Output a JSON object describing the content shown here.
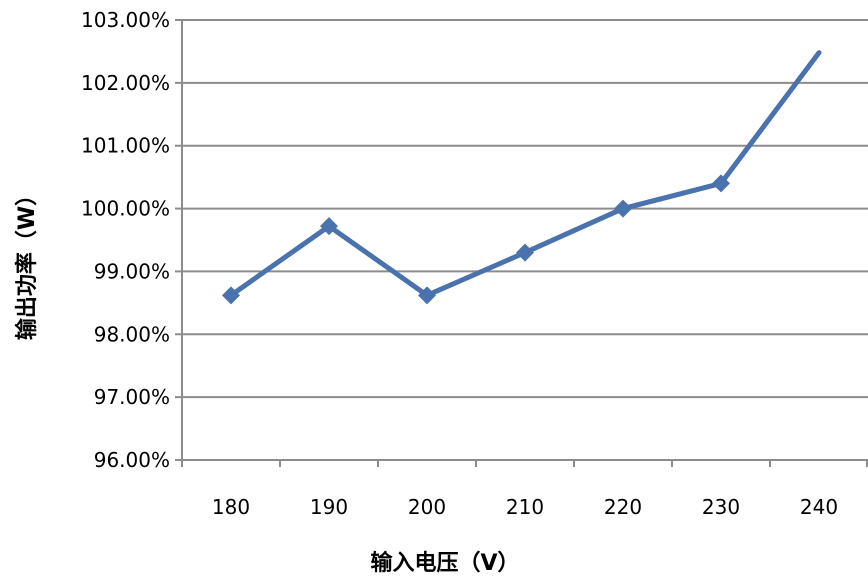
{
  "chart_data": {
    "type": "line",
    "title": "",
    "xlabel": "输入电压（V）",
    "ylabel": "输出功率（W）",
    "categories": [
      "180",
      "190",
      "200",
      "210",
      "220",
      "230",
      "240"
    ],
    "series": [
      {
        "values": [
          98.62,
          99.72,
          98.62,
          99.3,
          100.0,
          100.4,
          102.48
        ],
        "color": "#4a72ad",
        "marker": "diamond"
      }
    ],
    "ylim": [
      96,
      103
    ],
    "yticks": [
      96,
      97,
      98,
      99,
      100,
      101,
      102,
      103
    ],
    "ytick_labels": [
      "96.00%",
      "97.00%",
      "98.00%",
      "99.00%",
      "100.00%",
      "101.00%",
      "102.00%",
      "103.00%"
    ],
    "grid": true,
    "legend": "none",
    "colors": {
      "gridline": "#8c8c8c",
      "axis": "#8c8c8c",
      "line": "#4a72ad"
    }
  }
}
